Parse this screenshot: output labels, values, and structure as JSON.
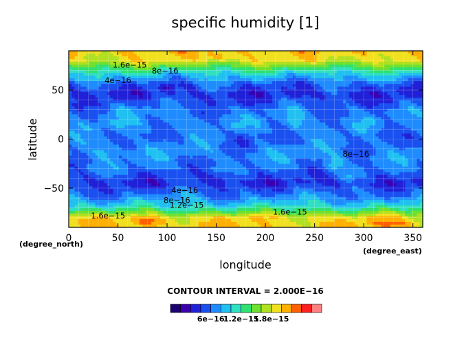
{
  "chart_data": {
    "type": "heatmap",
    "title": "specific humidity [1]",
    "xlabel": "longitude",
    "ylabel": "latitude",
    "x_unit_label": "(degree_east)",
    "y_unit_label": "(degree_north)",
    "xlim": [
      0,
      360
    ],
    "ylim": [
      -90,
      90
    ],
    "x_ticks": [
      "0",
      "50",
      "100",
      "150",
      "200",
      "250",
      "300",
      "350"
    ],
    "x_tick_values": [
      0,
      50,
      100,
      150,
      200,
      250,
      300,
      350
    ],
    "y_ticks": [
      "50",
      "0",
      "−50"
    ],
    "y_tick_values": [
      50,
      0,
      -50
    ],
    "grid": true,
    "contour_interval_text": "CONTOUR INTERVAL = 2.000E−16",
    "colorbar": {
      "levels": [
        0,
        2e-16,
        4e-16,
        6e-16,
        8e-16,
        1e-15,
        1.2e-15,
        1.4e-15,
        1.6e-15,
        1.8e-15,
        2e-15,
        2.2e-15,
        2.4e-15,
        2.6e-15
      ],
      "colors": [
        "#1a0070",
        "#3a00b0",
        "#2020d8",
        "#1a50f0",
        "#1e8cff",
        "#20c0f0",
        "#30e0c0",
        "#30e070",
        "#70e030",
        "#b0e020",
        "#f0e020",
        "#ffb000",
        "#ff6000",
        "#ff2020",
        "#ff8080"
      ],
      "tick_labels": [
        "6e−16",
        "1.2e−15",
        "1.8e−15"
      ],
      "tick_values": [
        6e-16,
        1.2e-15,
        1.8e-15
      ]
    },
    "contour_labels": [
      {
        "text": "1.6e−15",
        "lon": 62,
        "lat": 73
      },
      {
        "text": "8e−16",
        "lon": 98,
        "lat": 67
      },
      {
        "text": "4e−16",
        "lon": 50,
        "lat": 57
      },
      {
        "text": "8e−16",
        "lon": 292,
        "lat": -18
      },
      {
        "text": "4e−16",
        "lon": 118,
        "lat": -55
      },
      {
        "text": "8e−16",
        "lon": 110,
        "lat": -65
      },
      {
        "text": "1.2e−15",
        "lon": 120,
        "lat": -70
      },
      {
        "text": "1.6e−15",
        "lon": 40,
        "lat": -81
      },
      {
        "text": "1.6e−15",
        "lon": 225,
        "lat": -77
      }
    ],
    "zonal_profile": {
      "lat": [
        -90,
        -80,
        -75,
        -70,
        -60,
        -45,
        -30,
        -15,
        0,
        15,
        30,
        45,
        55,
        65,
        72,
        80,
        90
      ],
      "value": [
        2e-15,
        1.9e-15,
        1.5e-15,
        1.1e-15,
        7e-16,
        3.5e-16,
        6e-16,
        7e-16,
        6e-16,
        7e-16,
        6e-16,
        3.5e-16,
        5e-16,
        9e-16,
        1.3e-15,
        1.85e-15,
        2e-15
      ]
    },
    "features": [
      {
        "lon": 100,
        "lat": 52,
        "dlon": 7,
        "dlat": 4,
        "amp": -3.2e-16
      },
      {
        "lon": 270,
        "lat": -26,
        "dlon": 8,
        "dlat": 6,
        "amp": 3.6e-16
      },
      {
        "lon": 285,
        "lat": -38,
        "dlon": 5,
        "dlat": 4,
        "amp": 2.5e-16
      },
      {
        "lon": 150,
        "lat": 84,
        "dlon": 14,
        "dlat": 4,
        "amp": 3e-16
      },
      {
        "lon": 80,
        "lat": -84,
        "dlon": 14,
        "dlat": 4,
        "amp": 3.5e-16
      },
      {
        "lon": 330,
        "lat": -86,
        "dlon": 25,
        "dlat": 3,
        "amp": 3e-16
      },
      {
        "lon": 230,
        "lat": 20,
        "dlon": 8,
        "dlat": 10,
        "amp": 3e-16
      },
      {
        "lon": 180,
        "lat": 0,
        "dlon": 10,
        "dlat": 8,
        "amp": -2e-16
      },
      {
        "lon": 320,
        "lat": 10,
        "dlon": 10,
        "dlat": 8,
        "amp": -2e-16
      },
      {
        "lon": 40,
        "lat": -10,
        "dlon": 12,
        "dlat": 8,
        "amp": 2.2e-16
      },
      {
        "lon": 160,
        "lat": -40,
        "dlon": 15,
        "dlat": 6,
        "amp": -2e-16
      },
      {
        "lon": 60,
        "lat": 30,
        "dlon": 12,
        "dlat": 8,
        "amp": 2e-16
      }
    ]
  }
}
